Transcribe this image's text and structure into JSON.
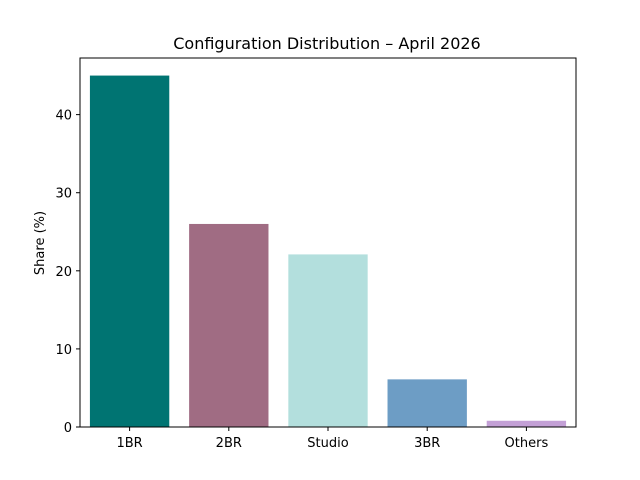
{
  "chart_data": {
    "type": "bar",
    "title": "Configuration Distribution – April 2026",
    "xlabel": "",
    "ylabel": "Share (%)",
    "categories": [
      "1BR",
      "2BR",
      "Studio",
      "3BR",
      "Others"
    ],
    "values": [
      45.0,
      26.0,
      22.1,
      6.1,
      0.8
    ],
    "colors": [
      "#007472",
      "#a06c83",
      "#b3dfdd",
      "#6d9dc5",
      "#c3a0d6"
    ],
    "ylim": [
      0,
      47.25
    ],
    "yticks": [
      0,
      10,
      20,
      30,
      40
    ],
    "grid": false,
    "legend": "none"
  }
}
